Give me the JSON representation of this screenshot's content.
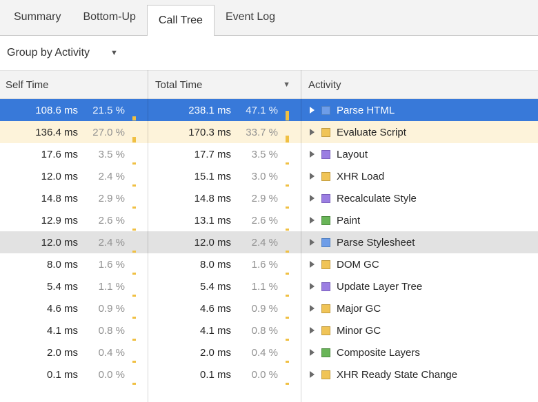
{
  "tabs": [
    {
      "label": "Summary",
      "active": false
    },
    {
      "label": "Bottom-Up",
      "active": false
    },
    {
      "label": "Call Tree",
      "active": true
    },
    {
      "label": "Event Log",
      "active": false
    }
  ],
  "toolbar": {
    "group_by_label": "Group by Activity",
    "dropdown_icon": "▼"
  },
  "table": {
    "columns": {
      "self_time": "Self Time",
      "total_time": "Total Time",
      "activity": "Activity",
      "sort_icon": "▼"
    },
    "rows": [
      {
        "self_time": "108.6 ms",
        "self_pct": "21.5 %",
        "self_pct_val": 21.5,
        "total_time": "238.1 ms",
        "total_pct": "47.1 %",
        "total_pct_val": 47.1,
        "activity": "Parse HTML",
        "category": "loading",
        "icon_fill": "#6e9de8",
        "icon_border": "#5180c0",
        "state": "selected"
      },
      {
        "self_time": "136.4 ms",
        "self_pct": "27.0 %",
        "self_pct_val": 27.0,
        "total_time": "170.3 ms",
        "total_pct": "33.7 %",
        "total_pct_val": 33.7,
        "activity": "Evaluate Script",
        "category": "scripting",
        "icon_fill": "#f0c457",
        "icon_border": "#c19b3f",
        "state": "highlighted"
      },
      {
        "self_time": "17.6 ms",
        "self_pct": "3.5 %",
        "self_pct_val": 3.5,
        "total_time": "17.7 ms",
        "total_pct": "3.5 %",
        "total_pct_val": 3.5,
        "activity": "Layout",
        "category": "rendering",
        "icon_fill": "#9b7ee2",
        "icon_border": "#7a5fbb",
        "state": "normal"
      },
      {
        "self_time": "12.0 ms",
        "self_pct": "2.4 %",
        "self_pct_val": 2.4,
        "total_time": "15.1 ms",
        "total_pct": "3.0 %",
        "total_pct_val": 3.0,
        "activity": "XHR Load",
        "category": "scripting",
        "icon_fill": "#f0c457",
        "icon_border": "#c19b3f",
        "state": "normal"
      },
      {
        "self_time": "14.8 ms",
        "self_pct": "2.9 %",
        "self_pct_val": 2.9,
        "total_time": "14.8 ms",
        "total_pct": "2.9 %",
        "total_pct_val": 2.9,
        "activity": "Recalculate Style",
        "category": "rendering",
        "icon_fill": "#9b7ee2",
        "icon_border": "#7a5fbb",
        "state": "normal"
      },
      {
        "self_time": "12.9 ms",
        "self_pct": "2.6 %",
        "self_pct_val": 2.6,
        "total_time": "13.1 ms",
        "total_pct": "2.6 %",
        "total_pct_val": 2.6,
        "activity": "Paint",
        "category": "painting",
        "icon_fill": "#69b558",
        "icon_border": "#4e8a41",
        "state": "normal"
      },
      {
        "self_time": "12.0 ms",
        "self_pct": "2.4 %",
        "self_pct_val": 2.4,
        "total_time": "12.0 ms",
        "total_pct": "2.4 %",
        "total_pct_val": 2.4,
        "activity": "Parse Stylesheet",
        "category": "loading",
        "icon_fill": "#6e9de8",
        "icon_border": "#5180c0",
        "state": "hover"
      },
      {
        "self_time": "8.0 ms",
        "self_pct": "1.6 %",
        "self_pct_val": 1.6,
        "total_time": "8.0 ms",
        "total_pct": "1.6 %",
        "total_pct_val": 1.6,
        "activity": "DOM GC",
        "category": "scripting",
        "icon_fill": "#f0c457",
        "icon_border": "#c19b3f",
        "state": "normal"
      },
      {
        "self_time": "5.4 ms",
        "self_pct": "1.1 %",
        "self_pct_val": 1.1,
        "total_time": "5.4 ms",
        "total_pct": "1.1 %",
        "total_pct_val": 1.1,
        "activity": "Update Layer Tree",
        "category": "rendering",
        "icon_fill": "#9b7ee2",
        "icon_border": "#7a5fbb",
        "state": "normal"
      },
      {
        "self_time": "4.6 ms",
        "self_pct": "0.9 %",
        "self_pct_val": 0.9,
        "total_time": "4.6 ms",
        "total_pct": "0.9 %",
        "total_pct_val": 0.9,
        "activity": "Major GC",
        "category": "scripting",
        "icon_fill": "#f0c457",
        "icon_border": "#c19b3f",
        "state": "normal"
      },
      {
        "self_time": "4.1 ms",
        "self_pct": "0.8 %",
        "self_pct_val": 0.8,
        "total_time": "4.1 ms",
        "total_pct": "0.8 %",
        "total_pct_val": 0.8,
        "activity": "Minor GC",
        "category": "scripting",
        "icon_fill": "#f0c457",
        "icon_border": "#c19b3f",
        "state": "normal"
      },
      {
        "self_time": "2.0 ms",
        "self_pct": "0.4 %",
        "self_pct_val": 0.4,
        "total_time": "2.0 ms",
        "total_pct": "0.4 %",
        "total_pct_val": 0.4,
        "activity": "Composite Layers",
        "category": "painting",
        "icon_fill": "#69b558",
        "icon_border": "#4e8a41",
        "state": "normal"
      },
      {
        "self_time": "0.1 ms",
        "self_pct": "0.0 %",
        "self_pct_val": 0.0,
        "total_time": "0.1 ms",
        "total_pct": "0.0 %",
        "total_pct_val": 0.0,
        "activity": "XHR Ready State Change",
        "category": "scripting",
        "icon_fill": "#f0c457",
        "icon_border": "#c19b3f",
        "state": "normal"
      }
    ]
  },
  "colors": {
    "selection_bg": "#3879d9",
    "highlight_bg": "#fdf3da",
    "hover_bg": "#e2e2e2",
    "percent_bar": "#f0c043"
  }
}
